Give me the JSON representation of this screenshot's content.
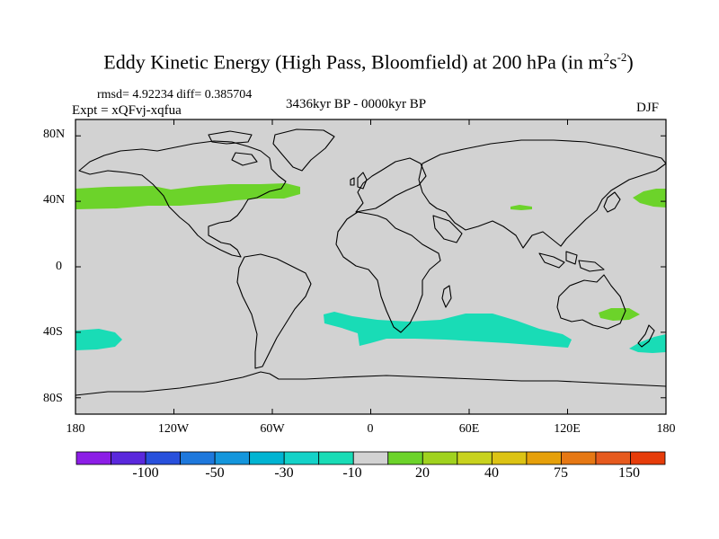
{
  "title": {
    "main": "Eddy Kinetic Energy (High Pass, Bloomfield) at 200 hPa (in m",
    "sup1": "2",
    "mid": "s",
    "sup2": "-2",
    "end": ")"
  },
  "stats": "rmsd= 4.92234 diff= 0.385704",
  "experiment": "Expt = xQFvj-xqfua",
  "period": "3436kyr BP - 0000kyr BP",
  "season": "DJF",
  "colors": {
    "land_ocean_bg": "#d2d2d2",
    "positive_20": "#6cd32a",
    "negative_10": "#19dcb6",
    "coast": "#000000"
  },
  "chart_data": {
    "type": "heatmap",
    "variable": "Eddy Kinetic Energy difference",
    "units": "m2 s-2",
    "level_hPa": 200,
    "projection": "cylindrical equidistant",
    "lon_range": [
      -180,
      180
    ],
    "lat_range": [
      -90,
      90
    ],
    "y_ticks": [
      "80N",
      "40N",
      "0",
      "40S",
      "80S"
    ],
    "x_ticks": [
      "180",
      "120W",
      "60W",
      "0",
      "60E",
      "120E",
      "180"
    ],
    "colorbar": {
      "labels": [
        "-100",
        "-50",
        "-30",
        "-10",
        "20",
        "40",
        "75",
        "150"
      ],
      "colors": [
        "#8c1ee6",
        "#5a28dc",
        "#2850dc",
        "#1e78dc",
        "#1496dc",
        "#00b4d2",
        "#14d2c8",
        "#19dcb6",
        "#d2d2d2",
        "#6cd32a",
        "#a0d21e",
        "#c8d21e",
        "#dcc314",
        "#e6a00a",
        "#e67814",
        "#e65a1e",
        "#e63c0a"
      ]
    },
    "features": [
      {
        "name": "North Pacific-Atlantic storm track increase",
        "class": "20 to 40",
        "lon": [
          -180,
          -25
        ],
        "lat": [
          34,
          52
        ]
      },
      {
        "name": "Central Asia increase",
        "class": "20 to 40",
        "lon": [
          84,
          100
        ],
        "lat": [
          36,
          40
        ]
      },
      {
        "name": "Northwest Pacific increase",
        "class": "20 to 40",
        "lon": [
          156,
          180
        ],
        "lat": [
          38,
          45
        ]
      },
      {
        "name": "East Australia increase",
        "class": "20 to 40",
        "lon": [
          142,
          160
        ],
        "lat": [
          -33,
          -27
        ]
      },
      {
        "name": "Southern Ocean decrease",
        "class": "-10 to -30",
        "lon": [
          -30,
          125
        ],
        "lat": [
          -50,
          -30
        ]
      },
      {
        "name": "South Pacific decrease",
        "class": "-10 to -30",
        "lon": [
          -180,
          -155
        ],
        "lat": [
          -52,
          -40
        ]
      },
      {
        "name": "Tasman Sea decrease",
        "class": "-10 to -30",
        "lon": [
          158,
          180
        ],
        "lat": [
          -52,
          -40
        ]
      }
    ]
  }
}
